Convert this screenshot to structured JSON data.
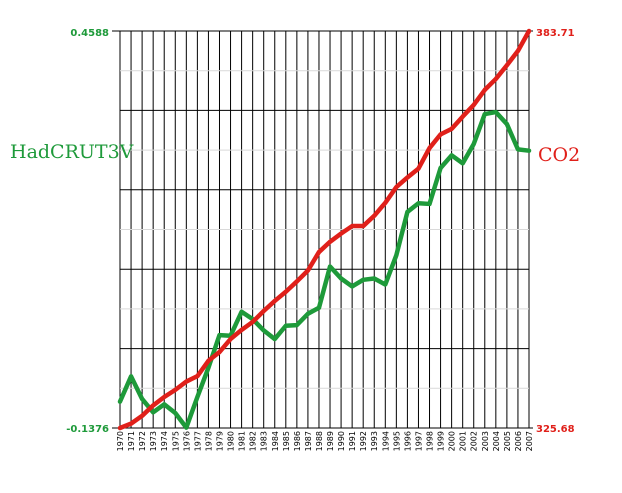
{
  "chart_data": {
    "type": "line",
    "x": [
      1970,
      1971,
      1972,
      1973,
      1974,
      1975,
      1976,
      1977,
      1978,
      1979,
      1980,
      1981,
      1982,
      1983,
      1984,
      1985,
      1986,
      1987,
      1988,
      1989,
      1990,
      1991,
      1992,
      1993,
      1994,
      1995,
      1996,
      1997,
      1998,
      1999,
      2000,
      2001,
      2002,
      2003,
      2004,
      2005,
      2006,
      2007
    ],
    "xtick_labels": [
      "1970",
      "1971",
      "1972",
      "1973",
      "1974",
      "1975",
      "1976",
      "1977",
      "1978",
      "1979",
      "1980",
      "1981",
      "1982",
      "1983",
      "1984",
      "1985",
      "1986",
      "1987",
      "1988",
      "1989",
      "1990",
      "1991",
      "1992",
      "1993",
      "1994",
      "1995",
      "1996",
      "1997",
      "1998",
      "1999",
      "2000",
      "2001",
      "2002",
      "2003",
      "2004",
      "2005",
      "2006",
      "2007"
    ],
    "left_axis": {
      "label": "HadCRUT3V",
      "min_label": "-0.1376",
      "max_label": "0.4588",
      "ylim": [
        -0.1376,
        0.4588
      ]
    },
    "right_axis": {
      "label": "CO2",
      "min_label": "325.68",
      "max_label": "383.71",
      "ylim": [
        325.68,
        383.71
      ]
    },
    "series": [
      {
        "name": "HadCRUT3V",
        "axis": "left",
        "color": "#1e9a3a",
        "values": [
          -0.098,
          -0.06,
          -0.094,
          -0.114,
          -0.102,
          -0.115,
          -0.137,
          -0.091,
          -0.047,
          0.002,
          0.001,
          0.037,
          0.026,
          0.009,
          -0.004,
          0.016,
          0.017,
          0.034,
          0.043,
          0.105,
          0.087,
          0.075,
          0.085,
          0.087,
          0.078,
          0.122,
          0.187,
          0.2,
          0.199,
          0.253,
          0.272,
          0.26,
          0.289,
          0.334,
          0.337,
          0.319,
          0.281,
          0.279
        ]
      },
      {
        "name": "CO2",
        "axis": "right",
        "color": "#e0201a",
        "values": [
          325.68,
          326.32,
          327.46,
          328.98,
          330.21,
          331.25,
          332.47,
          333.26,
          335.51,
          336.78,
          338.68,
          340.02,
          341.18,
          342.78,
          344.25,
          345.6,
          347.1,
          348.7,
          351.4,
          352.9,
          354.1,
          355.2,
          355.2,
          356.7,
          358.6,
          360.9,
          362.3,
          363.6,
          366.6,
          368.6,
          369.4,
          371.2,
          372.9,
          375.1,
          376.7,
          378.7,
          380.8,
          383.71
        ]
      }
    ],
    "grid": true
  }
}
